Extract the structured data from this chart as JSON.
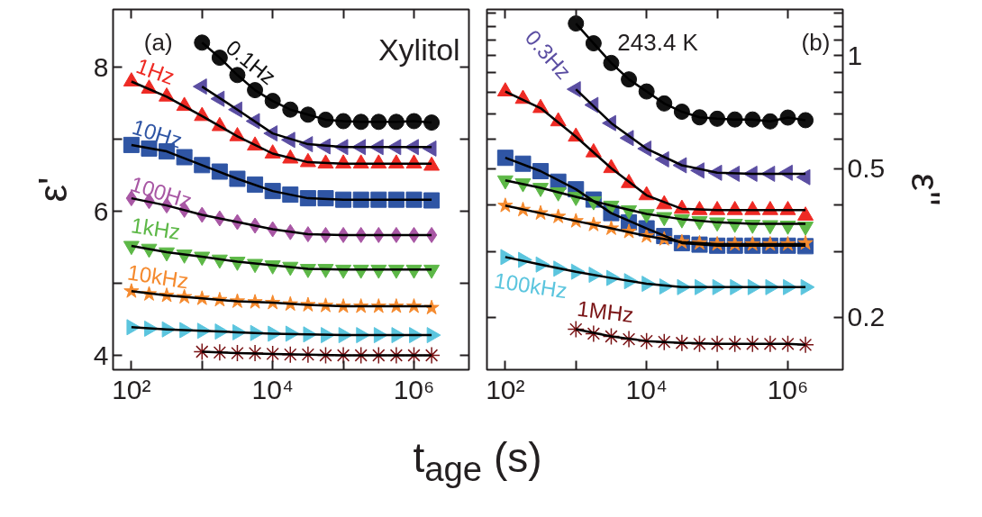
{
  "chart_data": [
    {
      "type": "scatter",
      "log": "x",
      "xlabel": "t$_{age}$ (s)",
      "ylabel": "ε'",
      "xlim": [
        55,
        6000000
      ],
      "ylim": [
        3.8,
        8.8
      ],
      "xticks": [
        {
          "value": 100,
          "label": "10²"
        },
        {
          "value": 1000,
          "label": null
        },
        {
          "value": 10000,
          "label": "10⁴"
        },
        {
          "value": 100000,
          "label": null
        },
        {
          "value": 1000000,
          "label": "10⁶"
        }
      ],
      "yticks": [
        4,
        {
          "value": 5,
          "label": null
        },
        6,
        {
          "value": 7,
          "label": null
        },
        8
      ],
      "annotations": [
        "(a)",
        "Xylitol"
      ],
      "x": [
        100,
        178,
        316,
        562,
        1000,
        1778,
        3162,
        5623,
        10000,
        17783,
        31623,
        56234,
        100000,
        177828,
        316228,
        562341,
        1000000,
        1778279
      ],
      "series": [
        {
          "name": "0.1Hz",
          "marker": "circle",
          "color": "#111111",
          "x": [
            1000,
            1778,
            3162,
            5623,
            10000,
            17783,
            31623,
            56234,
            100000,
            177828,
            316228,
            562341,
            1000000,
            1778279
          ],
          "values": [
            8.34,
            8.13,
            7.89,
            7.68,
            7.53,
            7.41,
            7.34,
            7.27,
            7.25,
            7.24,
            7.24,
            7.24,
            7.25,
            7.23
          ]
        },
        {
          "type": "line",
          "marker": "none",
          "color": "#000000",
          "x": [
            1000,
            1778,
            3162,
            5623,
            10000,
            17783,
            31623,
            56234,
            100000,
            177828,
            316228,
            562341,
            1000000,
            1778279
          ],
          "values": [
            8.34,
            8.13,
            7.89,
            7.68,
            7.53,
            7.41,
            7.34,
            7.27,
            7.25,
            7.24,
            7.24,
            7.24,
            7.25,
            7.23
          ]
        },
        {
          "marker": "triangle_left",
          "color": "#5b4ea2",
          "x": [
            1000,
            1778,
            3162,
            5623,
            10000,
            17783,
            31623,
            56234,
            100000,
            177828,
            316228,
            562341,
            1000000,
            1778279
          ],
          "values": [
            7.73,
            7.56,
            7.41,
            7.25,
            7.08,
            6.99,
            6.93,
            6.9,
            6.89,
            6.89,
            6.89,
            6.89,
            6.89,
            6.87
          ]
        },
        {
          "type": "line",
          "marker": "none",
          "color": "#000000",
          "x": [
            1000,
            3162,
            10000,
            31623,
            100000,
            316228,
            1000000,
            1778279
          ],
          "values": [
            7.73,
            7.41,
            7.08,
            6.93,
            6.89,
            6.89,
            6.89,
            6.89
          ]
        },
        {
          "name": "1Hz",
          "marker": "triangle",
          "color": "#ee2a24",
          "values": [
            7.8,
            7.7,
            7.59,
            7.46,
            7.32,
            7.18,
            7.04,
            6.91,
            6.8,
            6.73,
            6.68,
            6.66,
            6.66,
            6.66,
            6.66,
            6.66,
            6.66,
            6.63
          ]
        },
        {
          "type": "line",
          "marker": "none",
          "color": "#000000",
          "x": [
            100,
            316,
            1000,
            3162,
            10000,
            31623,
            100000,
            316228,
            1000000,
            1778279
          ],
          "values": [
            7.8,
            7.59,
            7.32,
            7.04,
            6.8,
            6.68,
            6.66,
            6.66,
            6.66,
            6.66
          ]
        },
        {
          "name": "10Hz",
          "marker": "square",
          "color": "#2f55a4",
          "values": [
            6.92,
            6.87,
            6.83,
            6.75,
            6.64,
            6.55,
            6.45,
            6.37,
            6.28,
            6.23,
            6.18,
            6.18,
            6.16,
            6.16,
            6.16,
            6.16,
            6.16,
            6.15
          ]
        },
        {
          "type": "line",
          "marker": "none",
          "color": "#000000",
          "x": [
            100,
            316,
            1000,
            3162,
            10000,
            31623,
            100000,
            316228,
            1000000,
            1778279
          ],
          "values": [
            6.92,
            6.83,
            6.64,
            6.45,
            6.28,
            6.18,
            6.16,
            6.16,
            6.16,
            6.16
          ]
        },
        {
          "name": "100Hz",
          "marker": "diamond",
          "color": "#a857a4",
          "values": [
            6.18,
            6.14,
            6.08,
            6.02,
            5.95,
            5.9,
            5.85,
            5.8,
            5.75,
            5.71,
            5.68,
            5.67,
            5.67,
            5.67,
            5.67,
            5.67,
            5.67,
            5.67
          ]
        },
        {
          "type": "line",
          "marker": "none",
          "color": "#000000",
          "x": [
            100,
            316,
            1000,
            3162,
            10000,
            31623,
            100000,
            316228,
            1000000,
            1778279
          ],
          "values": [
            6.18,
            6.08,
            5.95,
            5.85,
            5.75,
            5.68,
            5.67,
            5.67,
            5.67,
            5.67
          ]
        },
        {
          "name": "1kHz",
          "marker": "triangle_down",
          "color": "#5db847",
          "values": [
            5.52,
            5.48,
            5.43,
            5.4,
            5.37,
            5.33,
            5.3,
            5.27,
            5.25,
            5.23,
            5.2,
            5.2,
            5.19,
            5.19,
            5.19,
            5.19,
            5.19,
            5.19
          ]
        },
        {
          "type": "line",
          "marker": "none",
          "color": "#000000",
          "x": [
            100,
            316,
            1000,
            3162,
            10000,
            31623,
            100000,
            316228,
            1000000,
            1778279
          ],
          "values": [
            5.52,
            5.43,
            5.37,
            5.3,
            5.25,
            5.2,
            5.19,
            5.19,
            5.19,
            5.19
          ]
        },
        {
          "name": "10kHz",
          "marker": "star",
          "color": "#f58a2e",
          "values": [
            4.89,
            4.85,
            4.83,
            4.81,
            4.79,
            4.77,
            4.75,
            4.74,
            4.73,
            4.71,
            4.7,
            4.69,
            4.68,
            4.68,
            4.68,
            4.68,
            4.68,
            4.66
          ]
        },
        {
          "type": "line",
          "marker": "none",
          "color": "#000000",
          "x": [
            100,
            316,
            1000,
            3162,
            10000,
            31623,
            100000,
            316228,
            1000000,
            1778279
          ],
          "values": [
            4.89,
            4.83,
            4.79,
            4.75,
            4.73,
            4.7,
            4.68,
            4.68,
            4.68,
            4.68
          ]
        },
        {
          "marker": "triangle_right",
          "color": "#5bc5de",
          "values": [
            4.39,
            4.37,
            4.36,
            4.35,
            4.34,
            4.33,
            4.32,
            4.31,
            4.3,
            4.3,
            4.29,
            4.28,
            4.28,
            4.28,
            4.28,
            4.28,
            4.28,
            4.28
          ]
        },
        {
          "type": "line",
          "marker": "none",
          "color": "#000000",
          "x": [
            100,
            316,
            1000,
            3162,
            10000,
            31623,
            100000,
            316228,
            1000000,
            1778279
          ],
          "values": [
            4.39,
            4.36,
            4.34,
            4.32,
            4.3,
            4.29,
            4.28,
            4.28,
            4.28,
            4.28
          ]
        },
        {
          "marker": "cross",
          "color": "#7a1416",
          "x": [
            1000,
            1778,
            3162,
            5623,
            10000,
            17783,
            31623,
            56234,
            100000,
            177828,
            316228,
            562341,
            1000000,
            1778279
          ],
          "values": [
            4.05,
            4.04,
            4.03,
            4.03,
            4.02,
            4.01,
            4.01,
            4.0,
            4.0,
            4.0,
            4.0,
            4.0,
            4.0,
            4.0
          ]
        },
        {
          "type": "line",
          "marker": "none",
          "color": "#000000",
          "x": [
            1000,
            3162,
            10000,
            31623,
            100000,
            316228,
            1000000,
            1778279
          ],
          "values": [
            4.05,
            4.03,
            4.02,
            4.01,
            4.0,
            4.0,
            4.0,
            4.0
          ]
        }
      ]
    },
    {
      "type": "scatter",
      "log": "xy",
      "ylabel": "ε''",
      "xlim": [
        55,
        6000000
      ],
      "ylim": [
        0.145,
        1.33
      ],
      "xticks": [
        {
          "value": 100,
          "label": "10²"
        },
        {
          "value": 1000,
          "label": null
        },
        {
          "value": 10000,
          "label": "10⁴"
        },
        {
          "value": 100000,
          "label": null
        },
        {
          "value": 1000000,
          "label": "10⁶"
        }
      ],
      "yticks": [
        0.2,
        {
          "value": 0.3,
          "label": null
        },
        {
          "value": 0.4,
          "label": null
        },
        0.5,
        {
          "value": 0.6,
          "label": null
        },
        {
          "value": 0.7,
          "label": null
        },
        {
          "value": 0.8,
          "label": null
        },
        {
          "value": 0.9,
          "label": null
        },
        1,
        {
          "value": 1.1,
          "label": null
        },
        {
          "value": 1.2,
          "label": null
        },
        {
          "value": 1.3,
          "label": null
        }
      ],
      "annotations": [
        "243.4 K",
        "(b)"
      ],
      "x": [
        100,
        178,
        316,
        562,
        1000,
        1778,
        3162,
        5623,
        10000,
        17783,
        31623,
        56234,
        100000,
        177828,
        316228,
        562341,
        1000000,
        1778279
      ],
      "series": [
        {
          "marker": "circle",
          "color": "#111111",
          "x": [
            1000,
            1778,
            3162,
            5623,
            10000,
            17783,
            31623,
            56234,
            100000,
            177828,
            316228,
            562341,
            1000000,
            1778279
          ],
          "values": [
            1.22,
            1.08,
            0.957,
            0.865,
            0.803,
            0.746,
            0.709,
            0.685,
            0.679,
            0.676,
            0.676,
            0.668,
            0.684,
            0.673
          ]
        },
        {
          "type": "line",
          "marker": "none",
          "color": "#000000",
          "x": [
            1000,
            1778,
            3162,
            5623,
            10000,
            17783,
            31623,
            56234,
            100000,
            177828,
            316228,
            562341,
            1000000,
            1778279
          ],
          "values": [
            1.22,
            1.08,
            0.957,
            0.865,
            0.803,
            0.746,
            0.709,
            0.685,
            0.679,
            0.676,
            0.676,
            0.668,
            0.684,
            0.673
          ]
        },
        {
          "name": "0.3Hz",
          "marker": "triangle_left",
          "color": "#5b4ea2",
          "x": [
            1000,
            1778,
            3162,
            5623,
            10000,
            17783,
            31623,
            56234,
            100000,
            177828,
            316228,
            562341,
            1000000,
            1778279
          ],
          "values": [
            0.814,
            0.739,
            0.661,
            0.603,
            0.565,
            0.529,
            0.51,
            0.494,
            0.487,
            0.484,
            0.484,
            0.484,
            0.487,
            0.474
          ]
        },
        {
          "type": "line",
          "marker": "none",
          "color": "#000000",
          "x": [
            1000,
            3162,
            10000,
            31623,
            100000,
            316228,
            1000000,
            1778279
          ],
          "values": [
            0.814,
            0.661,
            0.565,
            0.51,
            0.487,
            0.484,
            0.484,
            0.484
          ]
        },
        {
          "marker": "triangle",
          "color": "#ee2a24",
          "values": [
            0.803,
            0.767,
            0.725,
            0.668,
            0.608,
            0.552,
            0.501,
            0.457,
            0.424,
            0.401,
            0.39,
            0.387,
            0.387,
            0.387,
            0.387,
            0.387,
            0.387,
            0.374
          ]
        },
        {
          "type": "line",
          "marker": "none",
          "color": "#000000",
          "x": [
            100,
            316,
            1000,
            3162,
            10000,
            31623,
            100000,
            316228,
            1000000,
            1778279
          ],
          "values": [
            0.803,
            0.725,
            0.608,
            0.501,
            0.424,
            0.39,
            0.387,
            0.387,
            0.387,
            0.387
          ]
        },
        {
          "marker": "square",
          "color": "#2f55a4",
          "values": [
            0.534,
            0.515,
            0.492,
            0.461,
            0.44,
            0.413,
            0.38,
            0.359,
            0.346,
            0.33,
            0.316,
            0.313,
            0.311,
            0.311,
            0.311,
            0.311,
            0.311,
            0.31
          ]
        },
        {
          "type": "line",
          "marker": "none",
          "color": "#000000",
          "x": [
            100,
            316,
            1000,
            3162,
            10000,
            31623,
            100000,
            316228,
            1000000,
            1778279
          ],
          "values": [
            0.534,
            0.492,
            0.44,
            0.38,
            0.346,
            0.316,
            0.311,
            0.311,
            0.311,
            0.311
          ]
        },
        {
          "marker": "triangle_down",
          "color": "#5db847",
          "values": [
            0.465,
            0.457,
            0.444,
            0.432,
            0.42,
            0.409,
            0.398,
            0.387,
            0.378,
            0.371,
            0.366,
            0.362,
            0.359,
            0.356,
            0.354,
            0.353,
            0.352,
            0.35
          ]
        },
        {
          "type": "line",
          "marker": "none",
          "color": "#000000",
          "x": [
            100,
            316,
            1000,
            3162,
            10000,
            31623,
            100000,
            316228,
            1000000,
            1778279
          ],
          "values": [
            0.465,
            0.444,
            0.42,
            0.398,
            0.378,
            0.366,
            0.359,
            0.356,
            0.356,
            0.356
          ]
        },
        {
          "marker": "star",
          "color": "#f58a2e",
          "values": [
            0.398,
            0.388,
            0.38,
            0.372,
            0.362,
            0.354,
            0.346,
            0.339,
            0.33,
            0.324,
            0.318,
            0.316,
            0.314,
            0.314,
            0.314,
            0.314,
            0.314,
            0.316
          ]
        },
        {
          "type": "line",
          "marker": "none",
          "color": "#000000",
          "x": [
            100,
            316,
            1000,
            3162,
            10000,
            31623,
            100000,
            316228,
            1000000,
            1778279
          ],
          "values": [
            0.398,
            0.38,
            0.362,
            0.346,
            0.33,
            0.318,
            0.314,
            0.314,
            0.314,
            0.314
          ]
        },
        {
          "name": "100kHz",
          "marker": "triangle_right",
          "color": "#5bc5de",
          "values": [
            0.29,
            0.285,
            0.277,
            0.27,
            0.265,
            0.26,
            0.255,
            0.25,
            0.246,
            0.242,
            0.241,
            0.241,
            0.241,
            0.241,
            0.241,
            0.241,
            0.241,
            0.241
          ]
        },
        {
          "type": "line",
          "marker": "none",
          "color": "#000000",
          "x": [
            100,
            316,
            1000,
            3162,
            10000,
            31623,
            100000,
            316228,
            1000000,
            1778279
          ],
          "values": [
            0.29,
            0.277,
            0.265,
            0.255,
            0.246,
            0.241,
            0.241,
            0.241,
            0.241,
            0.241
          ]
        },
        {
          "name": "1MHz",
          "marker": "cross",
          "color": "#7a1416",
          "x": [
            1000,
            1778,
            3162,
            5623,
            10000,
            17783,
            31623,
            56234,
            100000,
            177828,
            316228,
            562341,
            1000000,
            1778279
          ],
          "values": [
            0.186,
            0.181,
            0.178,
            0.175,
            0.173,
            0.172,
            0.171,
            0.17,
            0.17,
            0.17,
            0.17,
            0.17,
            0.17,
            0.169
          ]
        },
        {
          "type": "line",
          "marker": "none",
          "color": "#000000",
          "x": [
            1000,
            3162,
            10000,
            31623,
            100000,
            316228,
            1000000,
            1778279
          ],
          "values": [
            0.186,
            0.178,
            0.173,
            0.171,
            0.17,
            0.17,
            0.17,
            0.169
          ]
        }
      ]
    }
  ]
}
